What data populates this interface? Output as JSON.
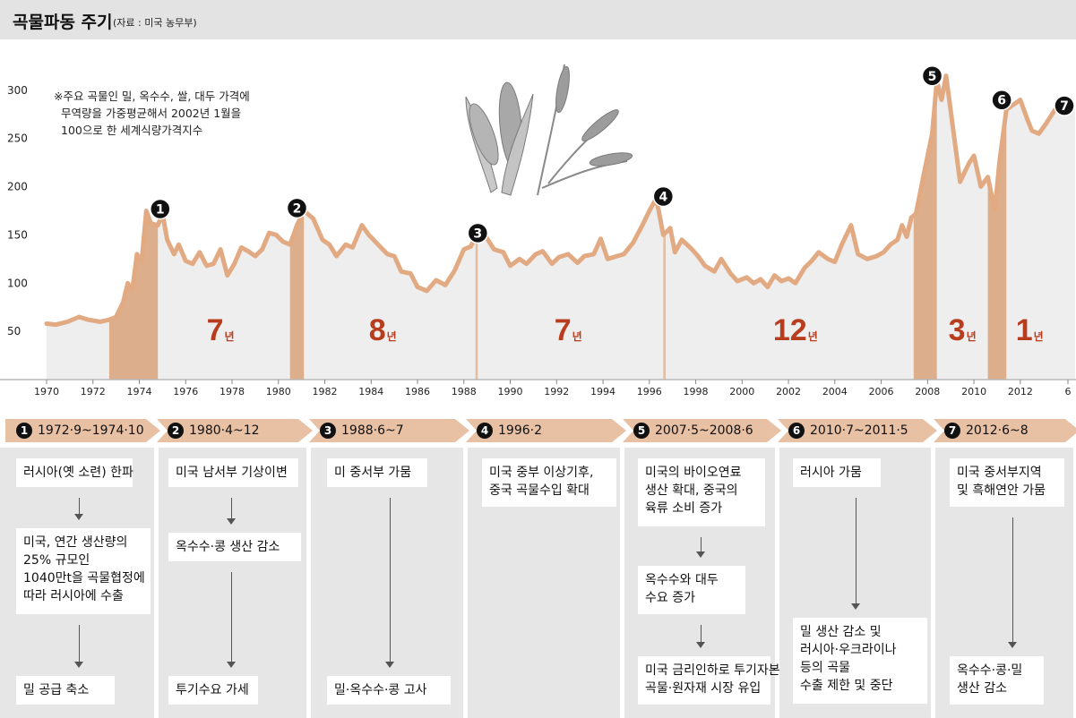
{
  "title": {
    "main": "곡물파동 주기",
    "source": "(자료 : 미국 농무부)"
  },
  "note": [
    "※주요 곡물인 밀, 옥수수, 쌀, 대두 가격에",
    "무역량을 가중평균해서 2002년 1월을",
    "100으로 한 세계식량가격지수"
  ],
  "colors": {
    "line": "#e2aa82",
    "shade": "#eeeeee",
    "band": "#dcae8c",
    "band_thin": "#e2bea3",
    "interval_text": "#b83c1e",
    "arrow_bar": "#e8c0a4",
    "panel": "#e6e6e6"
  },
  "chart_data": {
    "type": "area",
    "ylim": [
      0,
      310
    ],
    "xlim": [
      1969.5,
      2014
    ],
    "y_ticks": [
      50,
      100,
      150,
      200,
      250,
      300
    ],
    "x_ticks": [
      "1970",
      "1972",
      "1974",
      "1976",
      "1978",
      "1980",
      "1982",
      "1984",
      "1986",
      "1988",
      "1990",
      "1992",
      "1994",
      "1996",
      "1998",
      "2000",
      "2002",
      "2004",
      "2006",
      "2008",
      "2010",
      "2012",
      "6"
    ],
    "series": [
      {
        "x": [
          1970.0,
          1970.4,
          1970.9,
          1971.4,
          1971.8,
          1972.3,
          1972.7,
          1973.0,
          1973.3,
          1973.5,
          1973.7,
          1973.9,
          1974.1,
          1974.3,
          1974.5,
          1974.8,
          1975.0,
          1975.2,
          1975.5,
          1975.7,
          1976.0,
          1976.3,
          1976.6,
          1976.9,
          1977.2,
          1977.5,
          1977.8,
          1978.1,
          1978.4,
          1978.7,
          1979.0,
          1979.3,
          1979.6,
          1979.9,
          1980.2,
          1980.5,
          1980.8,
          1981.1,
          1981.5,
          1981.9,
          1982.2,
          1982.5,
          1982.9,
          1983.2,
          1983.6,
          1983.9,
          1984.3,
          1984.7,
          1985.0,
          1985.3,
          1985.7,
          1986.0,
          1986.4,
          1986.8,
          1987.2,
          1987.6,
          1988.0,
          1988.3,
          1988.6,
          1988.9,
          1989.3,
          1989.7,
          1990.0,
          1990.4,
          1990.7,
          1991.1,
          1991.4,
          1991.8,
          1992.1,
          1992.5,
          1992.9,
          1993.2,
          1993.6,
          1993.9,
          1994.2,
          1994.6,
          1994.9,
          1995.3,
          1995.7,
          1996.0,
          1996.3,
          1996.6,
          1996.9,
          1997.1,
          1997.4,
          1997.8,
          1998.1,
          1998.4,
          1998.8,
          1999.1,
          1999.5,
          1999.8,
          2000.2,
          2000.5,
          2000.8,
          2001.1,
          2001.4,
          2001.7,
          2002.0,
          2002.3,
          2002.7,
          2003.0,
          2003.3,
          2003.7,
          2004.0,
          2004.3,
          2004.7,
          2005.0,
          2005.4,
          2005.8,
          2006.1,
          2006.4,
          2006.7,
          2006.9,
          2007.1,
          2007.3,
          2007.5,
          2007.9,
          2008.2,
          2008.4,
          2008.6,
          2008.8,
          2009.1,
          2009.4,
          2009.8,
          2010.0,
          2010.3,
          2010.6,
          2010.9,
          2011.1,
          2011.4,
          2011.7,
          2012.0,
          2012.3,
          2012.5,
          2012.8,
          2013.1,
          2013.5,
          2013.9
        ],
        "values": [
          58,
          57,
          60,
          65,
          62,
          60,
          62,
          65,
          80,
          100,
          93,
          130,
          122,
          175,
          162,
          160,
          172,
          145,
          130,
          140,
          123,
          120,
          132,
          118,
          120,
          135,
          108,
          120,
          137,
          133,
          128,
          135,
          152,
          150,
          143,
          140,
          160,
          175,
          167,
          145,
          140,
          128,
          140,
          137,
          160,
          150,
          140,
          130,
          128,
          112,
          110,
          96,
          92,
          103,
          98,
          113,
          135,
          138,
          152,
          150,
          135,
          132,
          118,
          125,
          120,
          130,
          133,
          120,
          127,
          130,
          121,
          128,
          130,
          146,
          125,
          128,
          130,
          142,
          160,
          175,
          188,
          150,
          157,
          132,
          145,
          136,
          128,
          118,
          112,
          125,
          110,
          102,
          106,
          100,
          104,
          96,
          108,
          102,
          105,
          100,
          116,
          123,
          132,
          125,
          122,
          140,
          160,
          130,
          125,
          128,
          132,
          140,
          145,
          160,
          148,
          168,
          172,
          220,
          255,
          310,
          290,
          315,
          260,
          205,
          225,
          232,
          200,
          210,
          175,
          225,
          280,
          285,
          290,
          270,
          258,
          255,
          265,
          280,
          282
        ]
      }
    ],
    "bands": [
      {
        "start": 1972.7,
        "end": 1974.8
      },
      {
        "start": 1980.5,
        "end": 1981.1
      },
      {
        "start": 1988.5,
        "end": 1988.6
      },
      {
        "start": 1996.6,
        "end": 1996.7
      },
      {
        "start": 2007.4,
        "end": 2008.4
      },
      {
        "start": 2010.6,
        "end": 2011.4
      }
    ],
    "markers": [
      {
        "label": "1",
        "x": 1974.9,
        "y": 175
      },
      {
        "label": "2",
        "x": 1980.8,
        "y": 176
      },
      {
        "label": "3",
        "x": 1988.6,
        "y": 150
      },
      {
        "label": "4",
        "x": 1996.6,
        "y": 188
      },
      {
        "label": "5",
        "x": 2008.2,
        "y": 313
      },
      {
        "label": "6",
        "x": 2011.2,
        "y": 288
      },
      {
        "label": "7",
        "x": 2013.9,
        "y": 282
      }
    ],
    "intervals": [
      {
        "num": "7",
        "unit": "년",
        "x": 1977.5
      },
      {
        "num": "8",
        "unit": "년",
        "x": 1984.5
      },
      {
        "num": "7",
        "unit": "년",
        "x": 1992.5
      },
      {
        "num": "12",
        "unit": "년",
        "x": 2002.3
      },
      {
        "num": "3",
        "unit": "년",
        "x": 2009.5
      },
      {
        "num": "1",
        "unit": "년",
        "x": 2012.4
      }
    ]
  },
  "periods": [
    {
      "num": "1",
      "label": "1972·9~1974·10"
    },
    {
      "num": "2",
      "label": "1980·4~12"
    },
    {
      "num": "3",
      "label": "1988·6~7"
    },
    {
      "num": "4",
      "label": "1996·2"
    },
    {
      "num": "5",
      "label": "2007·5~2008·6"
    },
    {
      "num": "6",
      "label": "2010·7~2011·5"
    },
    {
      "num": "7",
      "label": "2012·6~8"
    }
  ],
  "columns": [
    {
      "boxes": [
        "러시아(옛 소련) 한파",
        "미국, 연간 생산량의\n25% 규모인\n1040만t을 곡물협정에\n따라 러시아에 수출",
        "밀 공급 축소"
      ]
    },
    {
      "boxes": [
        "미국 남서부 기상이변",
        "옥수수·콩 생산 감소",
        "투기수요 가세"
      ]
    },
    {
      "boxes": [
        "미 중서부 가뭄",
        "밀·옥수수·콩 고사"
      ]
    },
    {
      "boxes": [
        "미국 중부 이상기후,\n중국 곡물수입 확대"
      ]
    },
    {
      "boxes": [
        "미국의 바이오연료\n생산 확대, 중국의\n육류 소비 증가",
        "옥수수와 대두\n수요 증가",
        "미국 금리인하로 투기자본\n곡물·원자재 시장 유입"
      ]
    },
    {
      "boxes": [
        "러시아 가뭄",
        "밀 생산 감소 및\n러시아·우크라이나\n등의 곡물\n수출 제한 및 중단"
      ]
    },
    {
      "boxes": [
        "미국 중서부지역\n및 흑해연안 가뭄",
        "옥수수·콩·밀\n생산 감소"
      ]
    }
  ]
}
